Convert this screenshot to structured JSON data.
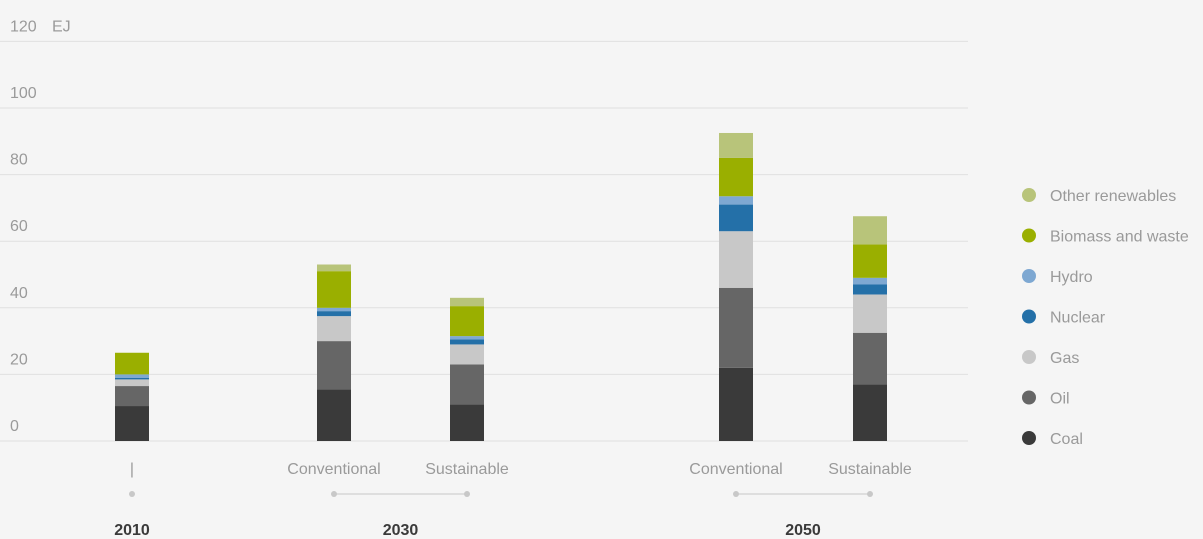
{
  "chart_data": {
    "type": "bar",
    "stacked": true,
    "unit": "EJ",
    "ylim": [
      0,
      120
    ],
    "yticks": [
      0,
      20,
      40,
      60,
      80,
      100,
      120
    ],
    "grid": true,
    "legend_position": "right",
    "categories": [
      "|",
      "Conventional",
      "Sustainable",
      "Conventional",
      "Sustainable"
    ],
    "groups": [
      {
        "label": "2010",
        "members": [
          0
        ]
      },
      {
        "label": "2030",
        "members": [
          1,
          2
        ]
      },
      {
        "label": "2050",
        "members": [
          3,
          4
        ]
      }
    ],
    "series": [
      {
        "name": "Coal",
        "color": "#3a3a3a",
        "values": [
          10.5,
          15.5,
          11,
          22,
          17
        ]
      },
      {
        "name": "Oil",
        "color": "#666666",
        "values": [
          6,
          14.5,
          12,
          24,
          15.5
        ]
      },
      {
        "name": "Gas",
        "color": "#c8c8c8",
        "values": [
          2,
          7.5,
          6,
          17,
          11.5
        ]
      },
      {
        "name": "Nuclear",
        "color": "#2470a8",
        "values": [
          0.5,
          1.5,
          1.5,
          8,
          3
        ]
      },
      {
        "name": "Hydro",
        "color": "#7ea8d2",
        "values": [
          1,
          1,
          1,
          2.5,
          2
        ]
      },
      {
        "name": "Biomass and waste",
        "color": "#9aaf00",
        "values": [
          6.5,
          11,
          9,
          11.5,
          10
        ]
      },
      {
        "name": "Other renewables",
        "color": "#b8c47a",
        "values": [
          0,
          2,
          2.5,
          7.5,
          8.5
        ]
      }
    ]
  }
}
